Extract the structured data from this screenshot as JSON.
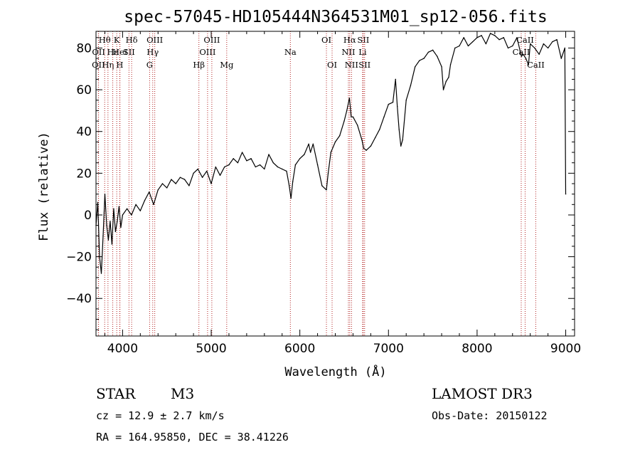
{
  "chart_data": {
    "type": "line",
    "title": "spec-57045-HD105444N364531M01_sp12-056.fits",
    "xlabel": "Wavelength (Å)",
    "ylabel": "Flux (relative)",
    "xlim": [
      3700,
      9100
    ],
    "ylim": [
      -58,
      88
    ],
    "xticks": [
      4000,
      5000,
      6000,
      7000,
      8000,
      9000
    ],
    "yticks": [
      -40,
      -20,
      0,
      20,
      40,
      60,
      80
    ],
    "grid": false,
    "series": [
      {
        "name": "flux",
        "color": "#000000",
        "x": [
          3700,
          3720,
          3740,
          3760,
          3780,
          3800,
          3820,
          3840,
          3860,
          3880,
          3900,
          3920,
          3940,
          3960,
          3980,
          4000,
          4050,
          4100,
          4150,
          4200,
          4250,
          4300,
          4350,
          4400,
          4450,
          4500,
          4550,
          4600,
          4650,
          4700,
          4750,
          4800,
          4850,
          4900,
          4950,
          5000,
          5050,
          5100,
          5150,
          5200,
          5250,
          5300,
          5350,
          5400,
          5450,
          5500,
          5550,
          5600,
          5650,
          5700,
          5750,
          5800,
          5850,
          5880,
          5900,
          5920,
          5950,
          6000,
          6050,
          6100,
          6120,
          6150,
          6200,
          6250,
          6300,
          6320,
          6350,
          6400,
          6450,
          6500,
          6530,
          6560,
          6580,
          6600,
          6650,
          6700,
          6720,
          6750,
          6800,
          6850,
          6900,
          6950,
          7000,
          7050,
          7080,
          7100,
          7120,
          7140,
          7160,
          7200,
          7250,
          7300,
          7350,
          7400,
          7450,
          7500,
          7550,
          7600,
          7620,
          7650,
          7680,
          7700,
          7750,
          7800,
          7850,
          7900,
          7950,
          8000,
          8050,
          8100,
          8150,
          8200,
          8250,
          8300,
          8350,
          8400,
          8450,
          8500,
          8520,
          8550,
          8580,
          8600,
          8650,
          8700,
          8750,
          8800,
          8850,
          8900,
          8950,
          8990,
          9000
        ],
        "values": [
          -5,
          6,
          -20,
          -28,
          -10,
          10,
          -5,
          -12,
          -3,
          -14,
          3,
          -8,
          -3,
          4,
          -6,
          0,
          3,
          0,
          5,
          2,
          7,
          11,
          5,
          12,
          15,
          13,
          17,
          15,
          18,
          17,
          14,
          20,
          22,
          18,
          21,
          15,
          23,
          19,
          23,
          24,
          27,
          25,
          30,
          26,
          27,
          23,
          24,
          22,
          29,
          25,
          23,
          22,
          21,
          14,
          8,
          16,
          24,
          27,
          29,
          34,
          30,
          34,
          24,
          14,
          12,
          20,
          30,
          35,
          38,
          45,
          50,
          56,
          47,
          47,
          43,
          36,
          32,
          31,
          33,
          37,
          41,
          47,
          53,
          54,
          65,
          52,
          41,
          33,
          36,
          55,
          62,
          71,
          74,
          75,
          78,
          79,
          76,
          71,
          60,
          64,
          66,
          72,
          80,
          81,
          85,
          81,
          83,
          85,
          86,
          82,
          87,
          86,
          84,
          85,
          80,
          81,
          85,
          76,
          77,
          75,
          72,
          82,
          80,
          77,
          82,
          80,
          83,
          84,
          75,
          80,
          10
        ]
      }
    ],
    "line_markers": [
      {
        "label": "OII",
        "x": 3727,
        "row": 2
      },
      {
        "label": "OII",
        "x": 3729,
        "row": 1
      },
      {
        "label": "Hθ",
        "x": 3798,
        "row": 0
      },
      {
        "label": "Hη",
        "x": 3835,
        "row": 2
      },
      {
        "label": "Hε",
        "x": 3889,
        "row": 1
      },
      {
        "label": "K",
        "x": 3934,
        "row": 0
      },
      {
        "label": "HeI",
        "x": 3970,
        "row": 1
      },
      {
        "label": "H",
        "x": 3968,
        "row": 2
      },
      {
        "label": "SII",
        "x": 4072,
        "row": 1
      },
      {
        "label": "Hδ",
        "x": 4102,
        "row": 0
      },
      {
        "label": "G",
        "x": 4305,
        "row": 2
      },
      {
        "label": "Hγ",
        "x": 4340,
        "row": 1
      },
      {
        "label": "OIII",
        "x": 4363,
        "row": 0
      },
      {
        "label": "Hβ",
        "x": 4861,
        "row": 2
      },
      {
        "label": "OIII",
        "x": 4959,
        "row": 1
      },
      {
        "label": "OIII",
        "x": 5007,
        "row": 0
      },
      {
        "label": "Mg",
        "x": 5175,
        "row": 2
      },
      {
        "label": "Na",
        "x": 5893,
        "row": 1
      },
      {
        "label": "OI",
        "x": 6300,
        "row": 0
      },
      {
        "label": "OI",
        "x": 6364,
        "row": 2
      },
      {
        "label": "NII",
        "x": 6548,
        "row": 1
      },
      {
        "label": "Hα",
        "x": 6563,
        "row": 0
      },
      {
        "label": "NII",
        "x": 6583,
        "row": 2
      },
      {
        "label": "Li",
        "x": 6708,
        "row": 1
      },
      {
        "label": "SII",
        "x": 6716,
        "row": 0
      },
      {
        "label": "SII",
        "x": 6731,
        "row": 2
      },
      {
        "label": "CaII",
        "x": 8498,
        "row": 1
      },
      {
        "label": "CaII",
        "x": 8542,
        "row": 0
      },
      {
        "label": "CaII",
        "x": 8662,
        "row": 2
      }
    ]
  },
  "info": {
    "class": "STAR",
    "subclass": "M3",
    "survey": "LAMOST DR3",
    "cz": "cz = 12.9 ± 2.7 km/s",
    "obs_date": "Obs-Date: 20150122",
    "coords": "RA = 164.95850, DEC =  38.41226"
  }
}
